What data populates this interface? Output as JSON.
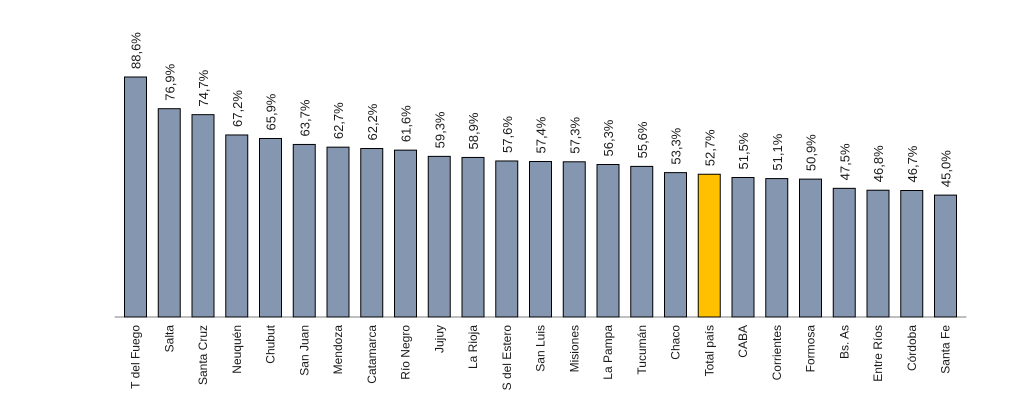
{
  "chart_data": {
    "type": "bar",
    "title": "",
    "xlabel": "",
    "ylabel": "",
    "categories": [
      "T del Fuego",
      "Salta",
      "Santa Cruz",
      "Neuquén",
      "Chubut",
      "San Juan",
      "Mendoza",
      "Catamarca",
      "Río Negro",
      "Jujuy",
      "La Rioja",
      "S del Estero",
      "San Luis",
      "Misiones",
      "La Pampa",
      "Tucumán",
      "Chaco",
      "Total país",
      "CABA",
      "Corrientes",
      "Formosa",
      "Bs. As",
      "Entre Ríos",
      "Córdoba",
      "Santa Fe"
    ],
    "values": [
      88.6,
      76.9,
      74.7,
      67.2,
      65.9,
      63.7,
      62.7,
      62.2,
      61.6,
      59.3,
      58.9,
      57.6,
      57.4,
      57.3,
      56.3,
      55.6,
      53.3,
      52.7,
      51.5,
      51.1,
      50.9,
      47.5,
      46.8,
      46.7,
      45.0
    ],
    "value_labels": [
      "88,6%",
      "76,9%",
      "74,7%",
      "67,2%",
      "65,9%",
      "63,7%",
      "62,7%",
      "62,2%",
      "61,6%",
      "59,3%",
      "58,9%",
      "57,6%",
      "57,4%",
      "57,3%",
      "56,3%",
      "55,6%",
      "53,3%",
      "52,7%",
      "51,5%",
      "51,1%",
      "50,9%",
      "47,5%",
      "46,8%",
      "46,7%",
      "45,0%"
    ],
    "highlight_category": "Total país",
    "colors": {
      "bar": "#8496b0",
      "highlight": "#ffc000",
      "outline": "#000000",
      "axis": "#7f7f7f"
    },
    "ylim": [
      0,
      100
    ],
    "grid": false,
    "legend": "none"
  }
}
